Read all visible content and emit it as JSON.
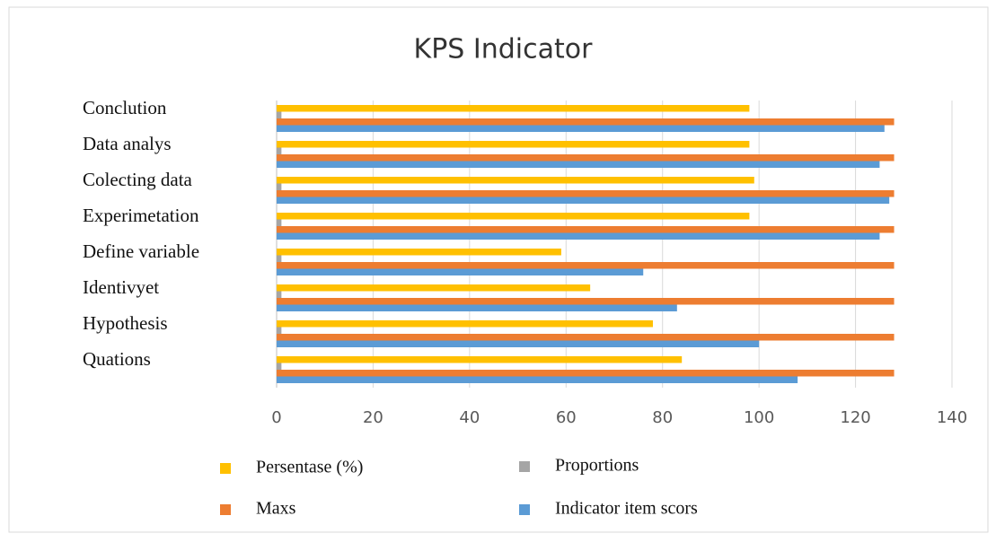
{
  "chart_data": {
    "type": "barh",
    "title": "KPS Indicator",
    "categories": [
      "Conclution",
      "Data analys",
      "Colecting data",
      "Experimetation",
      "Define variable",
      "Identivyet",
      "Hypothesis",
      "Quations"
    ],
    "series": [
      {
        "name": "Persentase (%)",
        "color": "#ffc000",
        "values": [
          98,
          98,
          99,
          98,
          59,
          65,
          78,
          84
        ]
      },
      {
        "name": "Proportions",
        "color": "#a5a5a5",
        "values": [
          1,
          1,
          1,
          1,
          1,
          1,
          1,
          1
        ]
      },
      {
        "name": "Maxs",
        "color": "#ed7d31",
        "values": [
          128,
          128,
          128,
          128,
          128,
          128,
          128,
          128
        ]
      },
      {
        "name": "Indicator item scors",
        "color": "#5b9bd5",
        "values": [
          126,
          125,
          127,
          125,
          76,
          83,
          100,
          108
        ]
      }
    ],
    "xlim": [
      0,
      140
    ],
    "xticks": [
      0,
      20,
      40,
      60,
      80,
      100,
      120,
      140
    ],
    "grid": true,
    "legend": "bottom"
  }
}
